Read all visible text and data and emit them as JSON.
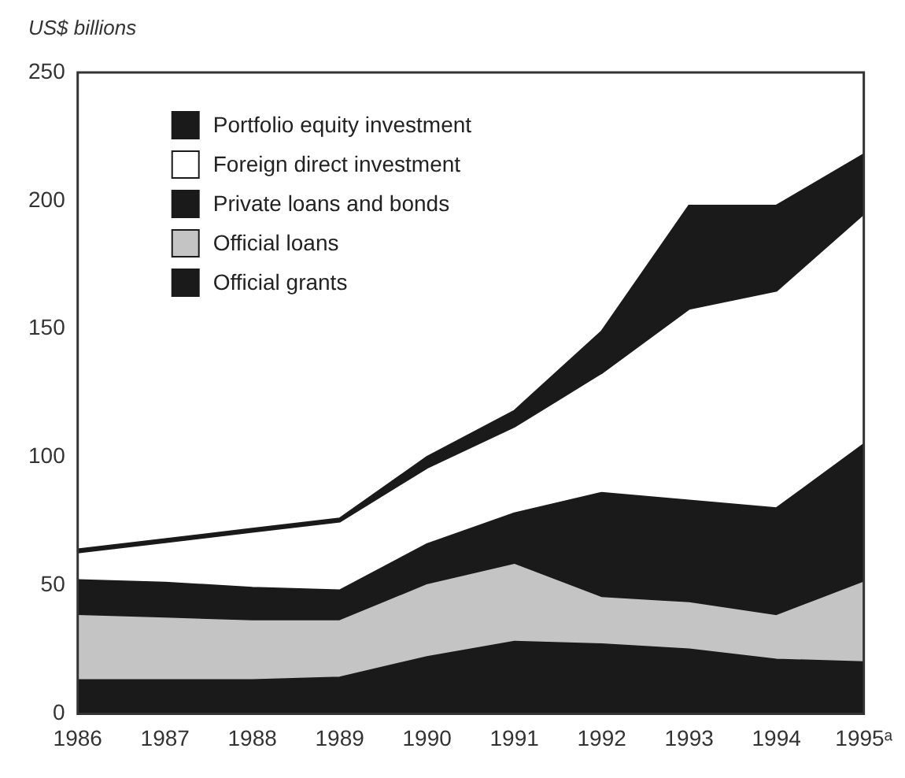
{
  "chart_data": {
    "type": "area",
    "ylabel": "US$ billions",
    "stacked": true,
    "categories": [
      "1986",
      "1987",
      "1988",
      "1989",
      "1990",
      "1991",
      "1992",
      "1993",
      "1994",
      "1995ᵃ"
    ],
    "series": [
      {
        "name": "Official grants",
        "color": "#1a1a1a",
        "values": [
          13,
          13,
          13,
          14,
          22,
          28,
          27,
          25,
          21,
          20
        ]
      },
      {
        "name": "Official loans",
        "color": "#c4c4c4",
        "values": [
          25,
          24,
          23,
          22,
          28,
          30,
          18,
          18,
          17,
          31
        ]
      },
      {
        "name": "Private loans and bonds",
        "color": "#1a1a1a",
        "values": [
          14,
          14,
          13,
          12,
          16,
          20,
          41,
          40,
          42,
          54
        ]
      },
      {
        "name": "Foreign direct investment",
        "color": "#ffffff",
        "values": [
          11,
          16,
          22,
          27,
          30,
          34,
          47,
          75,
          85,
          90
        ]
      },
      {
        "name": "Portfolio equity investment",
        "color": "#1a1a1a",
        "values": [
          1,
          1,
          1,
          1,
          4,
          6,
          16,
          40,
          33,
          23
        ]
      }
    ],
    "ylim": [
      0,
      250
    ],
    "yticks": [
      0,
      50,
      100,
      150,
      200,
      250
    ],
    "grid": false,
    "legend": "top left"
  }
}
